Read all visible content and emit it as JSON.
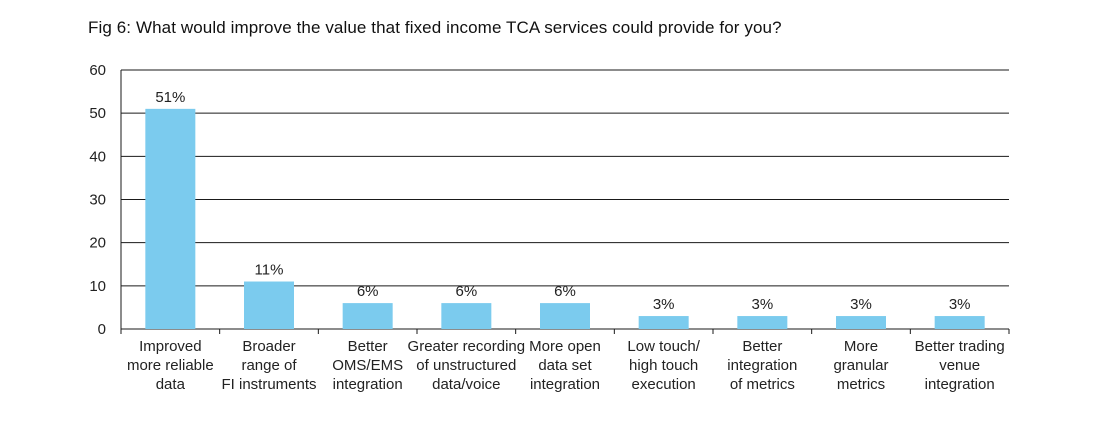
{
  "chart_data": {
    "type": "bar",
    "title": "Fig 6: What would improve the value that fixed income TCA services could provide for you?",
    "categories": [
      [
        "Improved",
        "more reliable",
        "data"
      ],
      [
        "Broader",
        "range of",
        "FI instruments"
      ],
      [
        "Better",
        "OMS/EMS",
        "integration"
      ],
      [
        "Greater recording",
        "of unstructured",
        "data/voice"
      ],
      [
        "More open",
        "data set",
        "integration"
      ],
      [
        "Low touch/",
        "high touch",
        "execution"
      ],
      [
        "Better",
        "integration",
        "of metrics"
      ],
      [
        "More",
        "granular",
        "metrics"
      ],
      [
        "Better trading",
        "venue",
        "integration"
      ]
    ],
    "values": [
      51,
      11,
      6,
      6,
      6,
      3,
      3,
      3,
      3
    ],
    "data_labels": [
      "51%",
      "11%",
      "6%",
      "6%",
      "6%",
      "3%",
      "3%",
      "3%",
      "3%"
    ],
    "yticks": [
      "0",
      "10",
      "20",
      "30",
      "40",
      "50",
      "60"
    ],
    "ylim": [
      0,
      60
    ],
    "grid": true,
    "bar_color": "#7bcbee",
    "grid_color": "#1a1a1a"
  }
}
